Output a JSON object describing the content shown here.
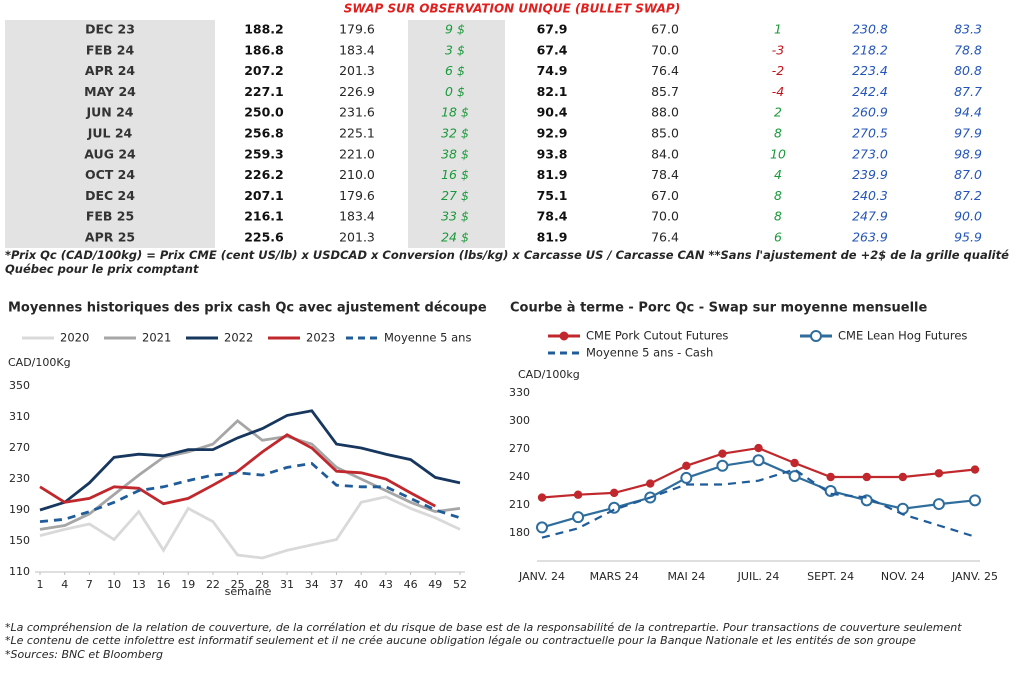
{
  "header": {
    "title": "SWAP SUR OBSERVATION UNIQUE (BULLET SWAP)"
  },
  "table": {
    "rows": [
      [
        "DEC 23",
        "188.2",
        "179.6",
        "9 $",
        "67.9",
        "67.0",
        "1",
        "230.8",
        "83.3"
      ],
      [
        "FEB 24",
        "186.8",
        "183.4",
        "3 $",
        "67.4",
        "70.0",
        "-3",
        "218.2",
        "78.8"
      ],
      [
        "APR 24",
        "207.2",
        "201.3",
        "6 $",
        "74.9",
        "76.4",
        "-2",
        "223.4",
        "80.8"
      ],
      [
        "MAY 24",
        "227.1",
        "226.9",
        "0 $",
        "82.1",
        "85.7",
        "-4",
        "242.4",
        "87.7"
      ],
      [
        "JUN 24",
        "250.0",
        "231.6",
        "18 $",
        "90.4",
        "88.0",
        "2",
        "260.9",
        "94.4"
      ],
      [
        "JUL 24",
        "256.8",
        "225.1",
        "32 $",
        "92.9",
        "85.0",
        "8",
        "270.5",
        "97.9"
      ],
      [
        "AUG 24",
        "259.3",
        "221.0",
        "38 $",
        "93.8",
        "84.0",
        "10",
        "273.0",
        "98.9"
      ],
      [
        "OCT 24",
        "226.2",
        "210.0",
        "16 $",
        "81.9",
        "78.4",
        "4",
        "239.9",
        "87.0"
      ],
      [
        "DEC 24",
        "207.1",
        "179.6",
        "27 $",
        "75.1",
        "67.0",
        "8",
        "240.3",
        "87.2"
      ],
      [
        "FEB 25",
        "216.1",
        "183.4",
        "33 $",
        "78.4",
        "70.0",
        "8",
        "247.9",
        "90.0"
      ],
      [
        "APR 25",
        "225.6",
        "201.3",
        "24 $",
        "81.9",
        "76.4",
        "6",
        "263.9",
        "95.9"
      ]
    ]
  },
  "footnote": "*Prix Qc (CAD/100kg) = Prix CME (cent US/lb) x USDCAD x Conversion (lbs/kg) x Carcasse US / Carcasse CAN **Sans l'ajustement de +2$ de la grille qualité Québec pour le prix comptant",
  "chart_data": [
    {
      "type": "line",
      "title": "Moyennes historiques des prix cash Qc avec ajustement découpe",
      "ylabel": "CAD/100Kg",
      "xlabel": "semaine",
      "x": [
        1,
        4,
        7,
        10,
        13,
        16,
        19,
        22,
        25,
        28,
        31,
        34,
        37,
        40,
        43,
        46,
        49,
        52
      ],
      "xlim": [
        1,
        52
      ],
      "xticks": [
        1,
        4,
        7,
        10,
        13,
        16,
        19,
        22,
        25,
        28,
        31,
        34,
        37,
        40,
        43,
        46,
        49,
        52
      ],
      "ylim": [
        110,
        350
      ],
      "yticks": [
        110,
        150,
        190,
        230,
        270,
        310,
        350
      ],
      "series": [
        {
          "name": "2020",
          "color": "#d9d9d9",
          "values": [
            157,
            165,
            172,
            152,
            188,
            138,
            192,
            175,
            132,
            128,
            138,
            145,
            152,
            200,
            207,
            192,
            180,
            165
          ]
        },
        {
          "name": "2021",
          "color": "#a6a6a6",
          "values": [
            165,
            170,
            185,
            210,
            235,
            258,
            265,
            275,
            305,
            280,
            285,
            275,
            245,
            230,
            215,
            200,
            188,
            192
          ]
        },
        {
          "name": "2022",
          "color": "#17375e",
          "values": [
            190,
            200,
            225,
            258,
            262,
            260,
            268,
            268,
            283,
            295,
            312,
            318,
            275,
            270,
            262,
            255,
            232,
            225
          ]
        },
        {
          "name": "2023",
          "color": "#c0282d",
          "values": [
            220,
            200,
            205,
            220,
            218,
            198,
            205,
            222,
            240,
            265,
            287,
            270,
            240,
            238,
            230,
            212,
            195,
            null
          ]
        },
        {
          "name": "Moyenne 5 ans",
          "color": "#1f5c99",
          "dashed": true,
          "values": [
            175,
            178,
            188,
            200,
            215,
            220,
            228,
            235,
            238,
            235,
            245,
            250,
            222,
            220,
            220,
            205,
            190,
            180
          ]
        }
      ]
    },
    {
      "type": "line",
      "title": "Courbe à terme - Porc Qc - Swap sur moyenne mensuelle",
      "ylabel": "CAD/100kg",
      "categories": [
        "JANV. 24",
        null,
        "MARS 24",
        null,
        "MAI 24",
        null,
        "JUIL. 24",
        null,
        "SEPT. 24",
        null,
        "NOV. 24",
        null,
        "JANV. 25"
      ],
      "ylim": [
        150,
        330
      ],
      "yticks": [
        180,
        210,
        240,
        270,
        300,
        330
      ],
      "series": [
        {
          "name": "CME Pork Cutout Futures",
          "color": "#c0282d",
          "marker": "filled",
          "values": [
            218,
            221,
            223,
            233,
            252,
            265,
            271,
            255,
            240,
            240,
            240,
            244,
            248
          ]
        },
        {
          "name": "CME Lean Hog Futures",
          "color": "#2e6d9c",
          "marker": "open",
          "values": [
            186,
            197,
            207,
            218,
            239,
            252,
            258,
            241,
            225,
            215,
            206,
            211,
            215
          ]
        },
        {
          "name": "Moyenne 5 ans - Cash",
          "color": "#1f5c99",
          "dashed": true,
          "values": [
            175,
            185,
            205,
            218,
            232,
            232,
            236,
            248,
            222,
            218,
            200,
            188,
            176
          ]
        }
      ]
    }
  ],
  "disclaimers": [
    "*La compréhension de la relation de couverture, de la corrélation et du risque de base est de la responsabilité de la contrepartie. Pour transactions de couverture seulement",
    "*Le contenu de cette infolettre est informatif seulement et il ne crée aucune obligation légale ou contractuelle pour la Banque Nationale et les entités de son groupe",
    "*Sources: BNC et Bloomberg"
  ]
}
